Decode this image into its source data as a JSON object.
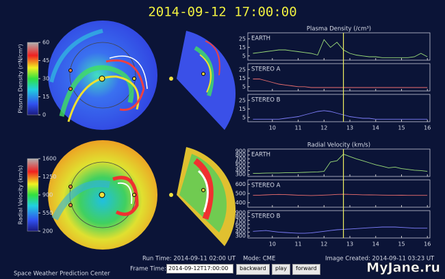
{
  "header": {
    "title": "2014-09-12 17:00:00"
  },
  "colorbars": [
    {
      "label": "Plasma Density (r²N/cm³)",
      "lim": [
        0,
        60
      ],
      "ticks": [
        0,
        15,
        30,
        45,
        60
      ]
    },
    {
      "label": "Radial Velocity (km/s)",
      "lim": [
        200,
        1600
      ],
      "ticks": [
        200,
        550,
        900,
        1250,
        1600
      ]
    }
  ],
  "chart_data": [
    {
      "type": "line",
      "title": "Plasma Density (/cm³)",
      "x": [
        9.25,
        9.5,
        9.75,
        10,
        10.25,
        10.5,
        10.75,
        11,
        11.25,
        11.5,
        11.75,
        12,
        12.25,
        12.5,
        12.75,
        13,
        13.25,
        13.5,
        13.75,
        14,
        14.25,
        14.5,
        14.75,
        15,
        15.25,
        15.5,
        15.75,
        16
      ],
      "xlim": [
        9.05,
        16.1
      ],
      "xticks": [
        10,
        11,
        12,
        13,
        14,
        15,
        16
      ],
      "marker_x": 12.75,
      "marker_color": "#f0f060",
      "series": [
        {
          "name": "EARTH",
          "color": "#9ee07a",
          "ylim": [
            0,
            32
          ],
          "yticks": [
            5,
            15,
            25
          ],
          "values": [
            8,
            9,
            10,
            11,
            12,
            12,
            11,
            10,
            9,
            8,
            6,
            24,
            15,
            21,
            12,
            8,
            6,
            5,
            4,
            4,
            3,
            3,
            3,
            3,
            3,
            4,
            8,
            4
          ]
        },
        {
          "name": "STEREO A",
          "color": "#f07070",
          "ylim": [
            0,
            32
          ],
          "yticks": [
            5,
            15,
            25
          ],
          "values": [
            14,
            14,
            12,
            10,
            8,
            7,
            6,
            5,
            5,
            4,
            4,
            4,
            4,
            4,
            4,
            4,
            4,
            4,
            4,
            4,
            4,
            4,
            4,
            4,
            4,
            4,
            4,
            4
          ]
        },
        {
          "name": "STEREO B",
          "color": "#8080ff",
          "ylim": [
            0,
            32
          ],
          "yticks": [
            5,
            15,
            25
          ],
          "values": [
            3,
            3,
            3,
            3,
            3,
            4,
            5,
            6,
            8,
            10,
            12,
            13,
            12,
            10,
            8,
            6,
            5,
            4,
            4,
            3,
            3,
            3,
            3,
            3,
            3,
            3,
            3,
            3
          ]
        }
      ]
    },
    {
      "type": "line",
      "title": "Radial Velocity (km/s)",
      "x": [
        9.25,
        9.5,
        9.75,
        10,
        10.25,
        10.5,
        10.75,
        11,
        11.25,
        11.5,
        11.75,
        12,
        12.25,
        12.5,
        12.75,
        13,
        13.25,
        13.5,
        13.75,
        14,
        14.25,
        14.5,
        14.75,
        15,
        15.25,
        15.5,
        15.75,
        16
      ],
      "xlim": [
        9.05,
        16.1
      ],
      "xticks": [
        10,
        11,
        12,
        13,
        14,
        15,
        16
      ],
      "marker_x": 12.75,
      "marker_color": "#f0f060",
      "series": [
        {
          "name": "EARTH",
          "color": "#9ee07a",
          "ylim": [
            250,
            950
          ],
          "yticks": [
            300,
            400,
            500,
            600,
            700,
            800,
            900
          ],
          "values": [
            330,
            330,
            335,
            340,
            340,
            345,
            345,
            350,
            355,
            360,
            365,
            380,
            620,
            650,
            820,
            760,
            700,
            650,
            600,
            550,
            510,
            470,
            490,
            450,
            430,
            410,
            400,
            380
          ]
        },
        {
          "name": "STEREO A",
          "color": "#f07070",
          "ylim": [
            350,
            650
          ],
          "yticks": [
            400,
            500,
            600
          ],
          "values": [
            480,
            482,
            485,
            488,
            490,
            488,
            485,
            482,
            480,
            478,
            480,
            483,
            486,
            490,
            492,
            490,
            488,
            486,
            485,
            484,
            483,
            482,
            482,
            481,
            480,
            480,
            480,
            480
          ]
        },
        {
          "name": "STEREO B",
          "color": "#8080ff",
          "ylim": [
            250,
            950
          ],
          "yticks": [
            300,
            400,
            500,
            600,
            700,
            800,
            900
          ],
          "values": [
            420,
            430,
            440,
            420,
            400,
            390,
            380,
            370,
            370,
            380,
            400,
            420,
            440,
            460,
            470,
            480,
            490,
            500,
            510,
            520,
            530,
            530,
            530,
            520,
            510,
            500,
            500,
            500
          ]
        }
      ]
    }
  ],
  "footer": {
    "org": "Space Weather Prediction Center",
    "run_time": "Run Time: 2014-09-11 02:00 UT",
    "mode": "Mode: CME",
    "image_created": "Image Created: 2014-09-11 03:23 UT",
    "frame_label": "Frame Time:",
    "frame_value": "2014-09-12T17:00:00",
    "buttons": [
      "backward",
      "play",
      "forward"
    ]
  },
  "watermark": "MyJane.ru"
}
